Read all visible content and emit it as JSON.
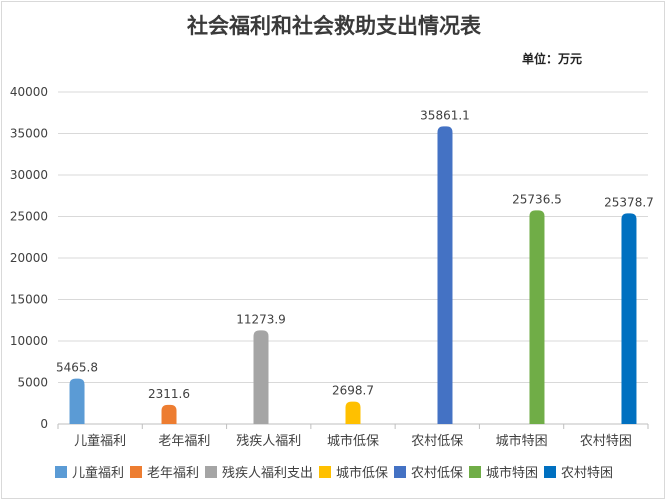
{
  "chart_data": {
    "type": "bar",
    "title": "社会福利和社会救助支出情况表",
    "unit_label": "单位：万元",
    "categories": [
      "儿童福利",
      "老年福利",
      "残疾人福利",
      "城市低保",
      "农村低保",
      "城市特困",
      "农村特困"
    ],
    "series": [
      {
        "name": "儿童福利",
        "color": "#5b9bd5",
        "values": [
          5465.8,
          null,
          null,
          null,
          null,
          null,
          null
        ]
      },
      {
        "name": "老年福利",
        "color": "#ed7d31",
        "values": [
          null,
          2311.6,
          null,
          null,
          null,
          null,
          null
        ]
      },
      {
        "name": "残疾人福利支出",
        "color": "#a5a5a5",
        "values": [
          null,
          null,
          11273.9,
          null,
          null,
          null,
          null
        ]
      },
      {
        "name": "城市低保",
        "color": "#ffc000",
        "values": [
          null,
          null,
          null,
          2698.7,
          null,
          null,
          null
        ]
      },
      {
        "name": "农村低保",
        "color": "#4472c4",
        "values": [
          null,
          null,
          null,
          null,
          35861.1,
          null,
          null
        ]
      },
      {
        "name": "城市特困",
        "color": "#70ad47",
        "values": [
          null,
          null,
          null,
          null,
          null,
          25736.5,
          null
        ]
      },
      {
        "name": "农村特困",
        "color": "#0070c0",
        "values": [
          null,
          null,
          null,
          null,
          null,
          null,
          25378.7
        ]
      }
    ],
    "data_labels": [
      "5465.8",
      "2311.6",
      "11273.9",
      "2698.7",
      "35861.1",
      "25736.5",
      "25378.7"
    ],
    "yticks": [
      "0",
      "5000",
      "10000",
      "15000",
      "20000",
      "25000",
      "30000",
      "35000",
      "40000"
    ],
    "ylim": [
      0,
      40000
    ],
    "grid": true,
    "legend_position": "bottom"
  }
}
